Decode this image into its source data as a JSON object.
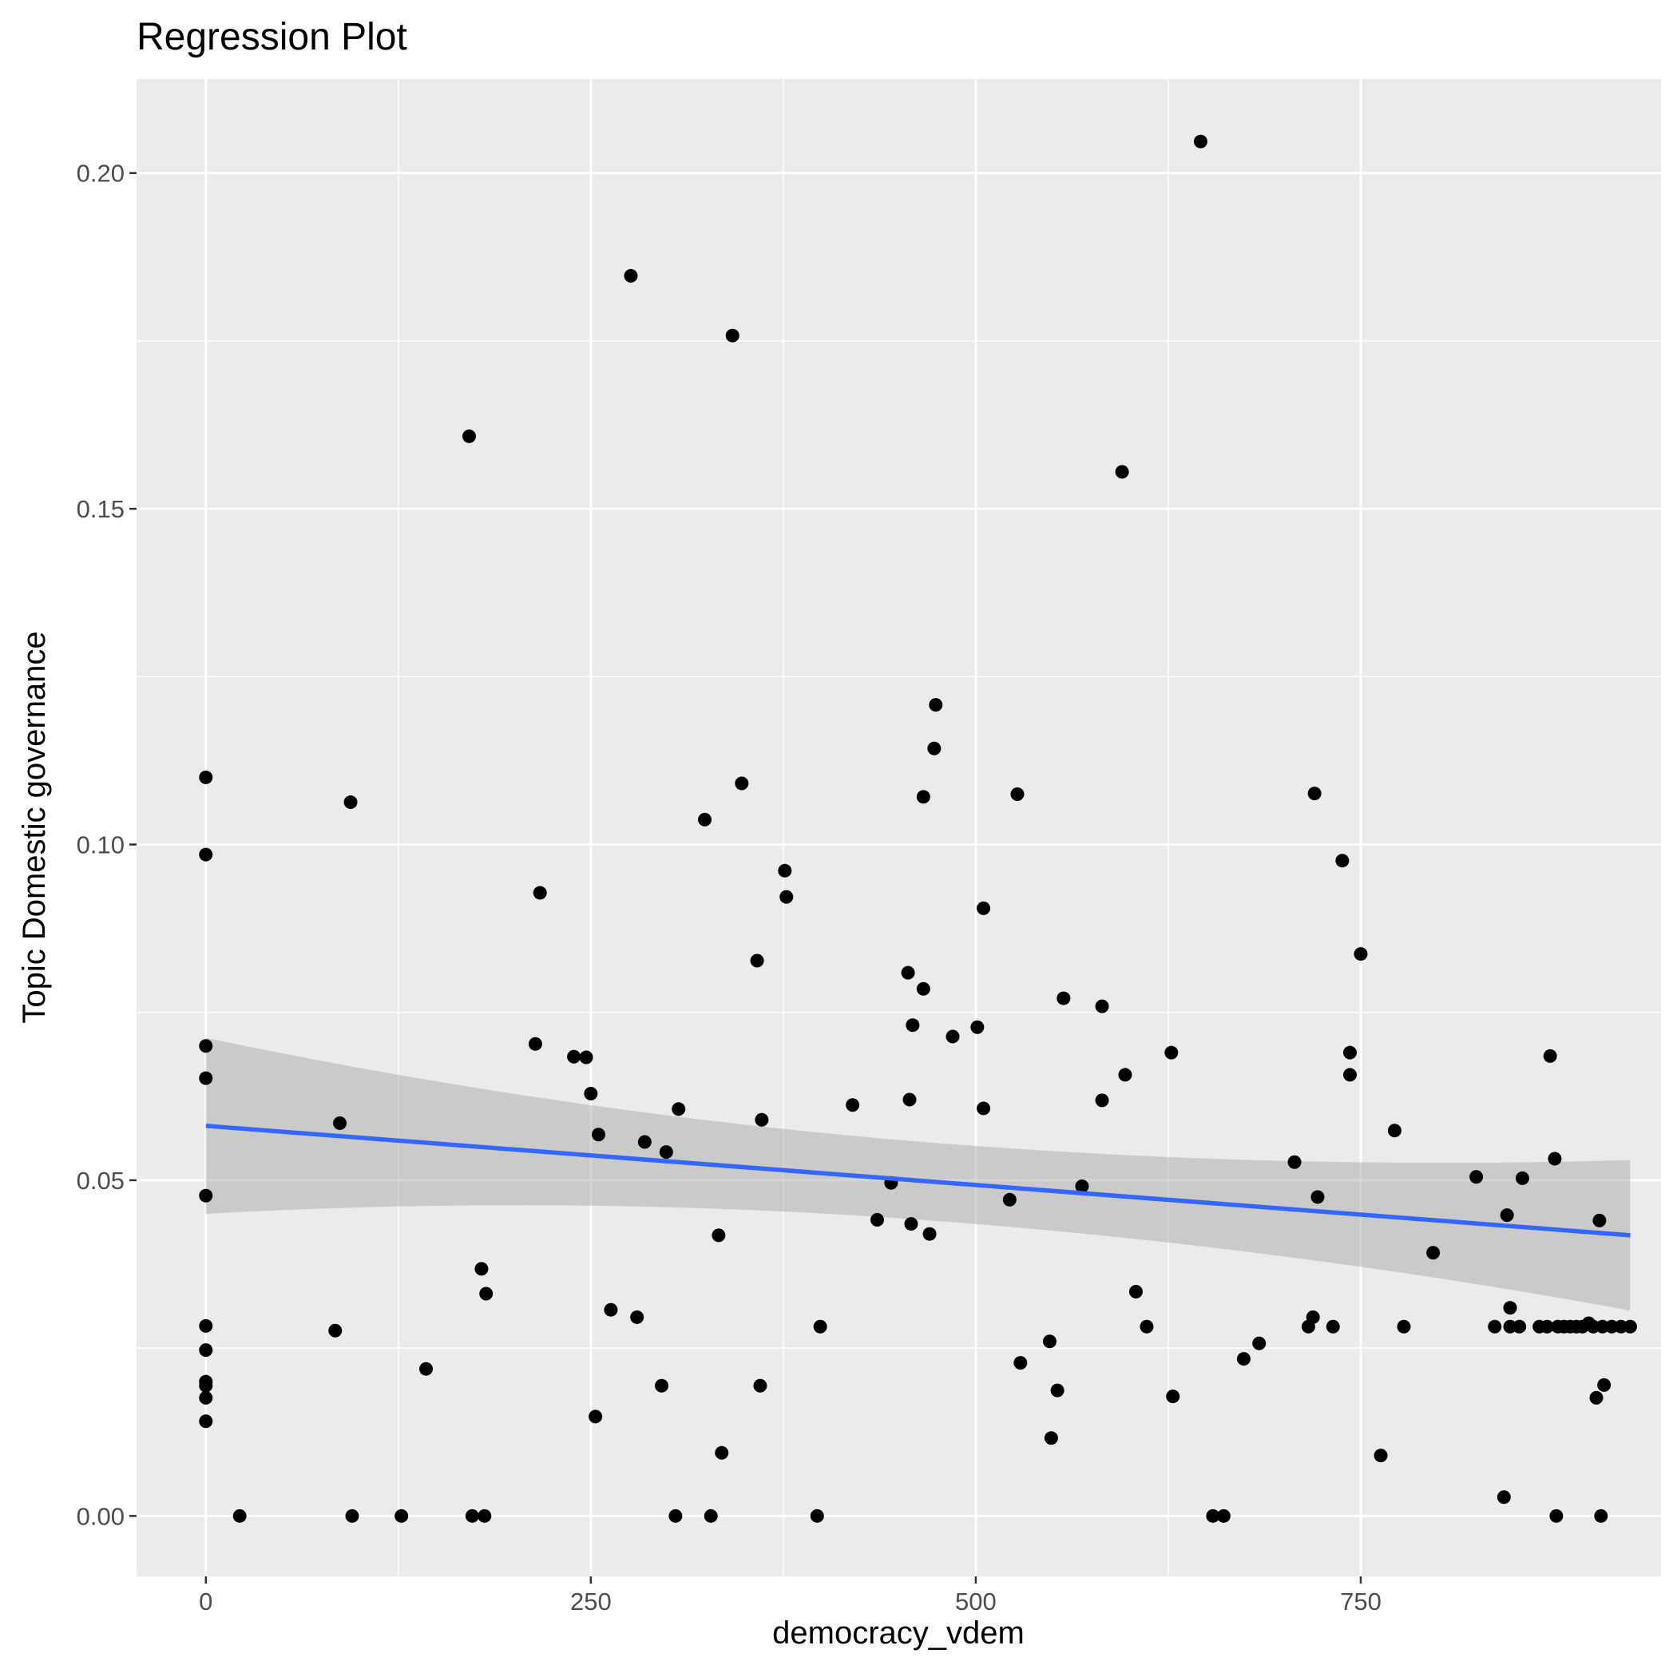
{
  "chart_data": {
    "type": "scatter",
    "title": "Regression Plot",
    "xlabel": "democracy_vdem",
    "ylabel": "Topic Domestic governance",
    "xlim": [
      -45,
      945
    ],
    "ylim": [
      -0.009,
      0.214
    ],
    "x_ticks": [
      0,
      250,
      500,
      750
    ],
    "x_tick_labels": [
      "0",
      "250",
      "500",
      "750"
    ],
    "y_ticks": [
      0.0,
      0.05,
      0.1,
      0.15,
      0.2
    ],
    "y_tick_labels": [
      "0.00",
      "0.05",
      "0.10",
      "0.15",
      "0.20"
    ],
    "grid": true,
    "colors": {
      "panel": "#ebebeb",
      "grid": "#ffffff",
      "point": "#000000",
      "line": "#3366ff",
      "ribbon": "#999999"
    },
    "points": [
      {
        "x": 0,
        "y": 0.11
      },
      {
        "x": 0,
        "y": 0.0985
      },
      {
        "x": 0,
        "y": 0.07
      },
      {
        "x": 0,
        "y": 0.0652
      },
      {
        "x": 0,
        "y": 0.0477
      },
      {
        "x": 0,
        "y": 0.0283
      },
      {
        "x": 0,
        "y": 0.0247
      },
      {
        "x": 0,
        "y": 0.02
      },
      {
        "x": 0,
        "y": 0.0194
      },
      {
        "x": 0,
        "y": 0.0176
      },
      {
        "x": 0,
        "y": 0.0141
      },
      {
        "x": 22,
        "y": 0.0
      },
      {
        "x": 84,
        "y": 0.0276
      },
      {
        "x": 87,
        "y": 0.0585
      },
      {
        "x": 94,
        "y": 0.1063
      },
      {
        "x": 95,
        "y": 0.0
      },
      {
        "x": 127,
        "y": 0.0
      },
      {
        "x": 143,
        "y": 0.0219
      },
      {
        "x": 171,
        "y": 0.1608
      },
      {
        "x": 173,
        "y": 0.0
      },
      {
        "x": 179,
        "y": 0.0368
      },
      {
        "x": 181,
        "y": 0.0
      },
      {
        "x": 182,
        "y": 0.0331
      },
      {
        "x": 214,
        "y": 0.0703
      },
      {
        "x": 217,
        "y": 0.0928
      },
      {
        "x": 239,
        "y": 0.0684
      },
      {
        "x": 247,
        "y": 0.0683
      },
      {
        "x": 250,
        "y": 0.0629
      },
      {
        "x": 253,
        "y": 0.0148
      },
      {
        "x": 255,
        "y": 0.0568
      },
      {
        "x": 263,
        "y": 0.0307
      },
      {
        "x": 276,
        "y": 0.1847
      },
      {
        "x": 280,
        "y": 0.0296
      },
      {
        "x": 285,
        "y": 0.0557
      },
      {
        "x": 296,
        "y": 0.0194
      },
      {
        "x": 299,
        "y": 0.0542
      },
      {
        "x": 305,
        "y": 0.0
      },
      {
        "x": 307,
        "y": 0.0606
      },
      {
        "x": 324,
        "y": 0.1037
      },
      {
        "x": 328,
        "y": 0.0
      },
      {
        "x": 333,
        "y": 0.0418
      },
      {
        "x": 335,
        "y": 0.0094
      },
      {
        "x": 342,
        "y": 0.1758
      },
      {
        "x": 348,
        "y": 0.1091
      },
      {
        "x": 358,
        "y": 0.0827
      },
      {
        "x": 360,
        "y": 0.0194
      },
      {
        "x": 361,
        "y": 0.059
      },
      {
        "x": 376,
        "y": 0.0961
      },
      {
        "x": 377,
        "y": 0.0922
      },
      {
        "x": 397,
        "y": 0.0
      },
      {
        "x": 399,
        "y": 0.0282
      },
      {
        "x": 420,
        "y": 0.0612
      },
      {
        "x": 436,
        "y": 0.0441
      },
      {
        "x": 445,
        "y": 0.0496
      },
      {
        "x": 456,
        "y": 0.0809
      },
      {
        "x": 457,
        "y": 0.062
      },
      {
        "x": 458,
        "y": 0.0435
      },
      {
        "x": 459,
        "y": 0.0731
      },
      {
        "x": 466,
        "y": 0.1071
      },
      {
        "x": 466,
        "y": 0.0785
      },
      {
        "x": 470,
        "y": 0.042
      },
      {
        "x": 473,
        "y": 0.1143
      },
      {
        "x": 474,
        "y": 0.1208
      },
      {
        "x": 485,
        "y": 0.0714
      },
      {
        "x": 501,
        "y": 0.0728
      },
      {
        "x": 505,
        "y": 0.0905
      },
      {
        "x": 505,
        "y": 0.0607
      },
      {
        "x": 522,
        "y": 0.0471
      },
      {
        "x": 527,
        "y": 0.1075
      },
      {
        "x": 529,
        "y": 0.0228
      },
      {
        "x": 548,
        "y": 0.026
      },
      {
        "x": 549,
        "y": 0.0116
      },
      {
        "x": 553,
        "y": 0.0187
      },
      {
        "x": 557,
        "y": 0.0771
      },
      {
        "x": 569,
        "y": 0.0491
      },
      {
        "x": 582,
        "y": 0.0759
      },
      {
        "x": 582,
        "y": 0.0619
      },
      {
        "x": 595,
        "y": 0.1555
      },
      {
        "x": 597,
        "y": 0.0657
      },
      {
        "x": 604,
        "y": 0.0334
      },
      {
        "x": 611,
        "y": 0.0282
      },
      {
        "x": 627,
        "y": 0.069
      },
      {
        "x": 628,
        "y": 0.0178
      },
      {
        "x": 646,
        "y": 0.2047
      },
      {
        "x": 654,
        "y": 0.0
      },
      {
        "x": 661,
        "y": 0.0
      },
      {
        "x": 674,
        "y": 0.0234
      },
      {
        "x": 684,
        "y": 0.0257
      },
      {
        "x": 707,
        "y": 0.0527
      },
      {
        "x": 716,
        "y": 0.0282
      },
      {
        "x": 719,
        "y": 0.0296
      },
      {
        "x": 720,
        "y": 0.1076
      },
      {
        "x": 722,
        "y": 0.0475
      },
      {
        "x": 732,
        "y": 0.0282
      },
      {
        "x": 738,
        "y": 0.0976
      },
      {
        "x": 743,
        "y": 0.069
      },
      {
        "x": 743,
        "y": 0.0657
      },
      {
        "x": 750,
        "y": 0.0837
      },
      {
        "x": 763,
        "y": 0.009
      },
      {
        "x": 772,
        "y": 0.0574
      },
      {
        "x": 778,
        "y": 0.0282
      },
      {
        "x": 797,
        "y": 0.0392
      },
      {
        "x": 825,
        "y": 0.0505
      },
      {
        "x": 837,
        "y": 0.0282
      },
      {
        "x": 843,
        "y": 0.0028
      },
      {
        "x": 845,
        "y": 0.0448
      },
      {
        "x": 847,
        "y": 0.031
      },
      {
        "x": 847,
        "y": 0.0282
      },
      {
        "x": 853,
        "y": 0.0282
      },
      {
        "x": 855,
        "y": 0.0503
      },
      {
        "x": 866,
        "y": 0.0282
      },
      {
        "x": 871,
        "y": 0.0282
      },
      {
        "x": 873,
        "y": 0.0685
      },
      {
        "x": 876,
        "y": 0.0532
      },
      {
        "x": 877,
        "y": 0.0
      },
      {
        "x": 878,
        "y": 0.0282
      },
      {
        "x": 882,
        "y": 0.0282
      },
      {
        "x": 886,
        "y": 0.0282
      },
      {
        "x": 890,
        "y": 0.0282
      },
      {
        "x": 894,
        "y": 0.0282
      },
      {
        "x": 898,
        "y": 0.0287
      },
      {
        "x": 901,
        "y": 0.0282
      },
      {
        "x": 903,
        "y": 0.0176
      },
      {
        "x": 905,
        "y": 0.044
      },
      {
        "x": 906,
        "y": 0.0
      },
      {
        "x": 907,
        "y": 0.0282
      },
      {
        "x": 908,
        "y": 0.0195
      },
      {
        "x": 913,
        "y": 0.0282
      },
      {
        "x": 919,
        "y": 0.0282
      },
      {
        "x": 925,
        "y": 0.0282
      }
    ],
    "regression": {
      "x": [
        0,
        925
      ],
      "y": [
        0.0581,
        0.0418
      ],
      "ci_lower": [
        0.045,
        0.03
      ],
      "ci_upper": [
        0.0712,
        0.053
      ]
    }
  }
}
